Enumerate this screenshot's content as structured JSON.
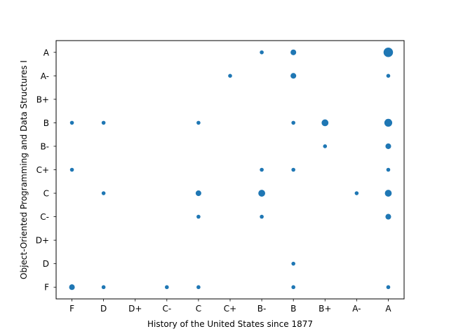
{
  "chart_data": {
    "type": "scatter",
    "xlabel": "History of the United States since 1877",
    "ylabel": "Object-Oriented Programming and Data Structures I",
    "x_categories": [
      "F",
      "D",
      "D+",
      "C-",
      "C",
      "C+",
      "B-",
      "B",
      "B+",
      "A-",
      "A"
    ],
    "y_categories": [
      "F",
      "D",
      "D+",
      "C-",
      "C",
      "C+",
      "B-",
      "B",
      "B+",
      "A-",
      "A"
    ],
    "marker_color": "#1f77b4",
    "grid": false,
    "points": [
      {
        "x": "F",
        "y": "F",
        "count": 3
      },
      {
        "x": "F",
        "y": "C+",
        "count": 1
      },
      {
        "x": "F",
        "y": "B",
        "count": 1
      },
      {
        "x": "D",
        "y": "F",
        "count": 1
      },
      {
        "x": "D",
        "y": "C",
        "count": 1
      },
      {
        "x": "D",
        "y": "B",
        "count": 1
      },
      {
        "x": "C-",
        "y": "F",
        "count": 1
      },
      {
        "x": "C",
        "y": "F",
        "count": 1
      },
      {
        "x": "C",
        "y": "C-",
        "count": 1
      },
      {
        "x": "C",
        "y": "C",
        "count": 3
      },
      {
        "x": "C",
        "y": "B",
        "count": 1
      },
      {
        "x": "C+",
        "y": "A-",
        "count": 1
      },
      {
        "x": "B-",
        "y": "C-",
        "count": 1
      },
      {
        "x": "B-",
        "y": "C",
        "count": 5
      },
      {
        "x": "B-",
        "y": "C+",
        "count": 1
      },
      {
        "x": "B-",
        "y": "A",
        "count": 1
      },
      {
        "x": "B",
        "y": "F",
        "count": 1
      },
      {
        "x": "B",
        "y": "D",
        "count": 1
      },
      {
        "x": "B",
        "y": "C+",
        "count": 1
      },
      {
        "x": "B",
        "y": "B",
        "count": 1
      },
      {
        "x": "B",
        "y": "A-",
        "count": 3
      },
      {
        "x": "B",
        "y": "A",
        "count": 3
      },
      {
        "x": "B+",
        "y": "B-",
        "count": 1
      },
      {
        "x": "B+",
        "y": "B",
        "count": 5
      },
      {
        "x": "A-",
        "y": "C",
        "count": 1
      },
      {
        "x": "A",
        "y": "F",
        "count": 1
      },
      {
        "x": "A",
        "y": "C-",
        "count": 3
      },
      {
        "x": "A",
        "y": "C",
        "count": 5
      },
      {
        "x": "A",
        "y": "C+",
        "count": 1
      },
      {
        "x": "A",
        "y": "B-",
        "count": 3
      },
      {
        "x": "A",
        "y": "B",
        "count": 7
      },
      {
        "x": "A",
        "y": "A-",
        "count": 1
      },
      {
        "x": "A",
        "y": "A",
        "count": 11
      }
    ]
  }
}
